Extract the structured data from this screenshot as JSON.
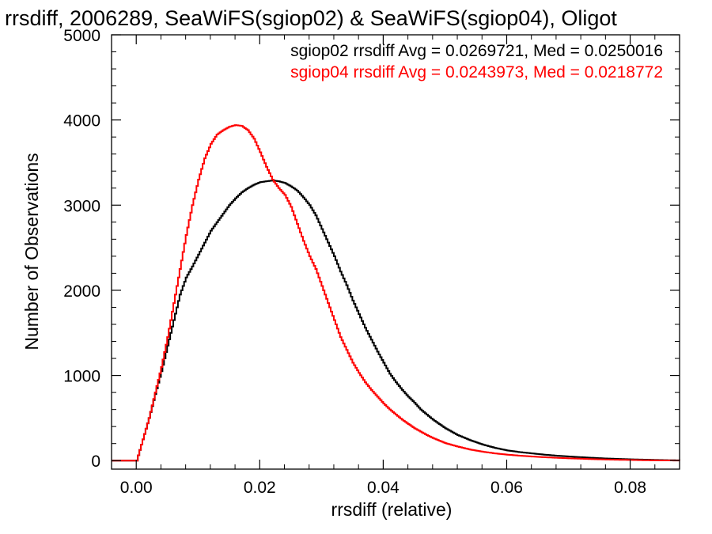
{
  "chart_data": {
    "type": "histogram",
    "title": "rrsdiff, 2006289, SeaWiFS(sgiop02) & SeaWiFS(sgiop04), Oligot",
    "xlabel": "rrsdiff (relative)",
    "ylabel": "Number of Observations",
    "xlim": [
      -0.004,
      0.088
    ],
    "ylim": [
      -100,
      5000
    ],
    "x_ticks": [
      0.0,
      0.02,
      0.04,
      0.06,
      0.08
    ],
    "x_tick_labels": [
      "0.00",
      "0.02",
      "0.04",
      "0.06",
      "0.08"
    ],
    "y_ticks": [
      0,
      1000,
      2000,
      3000,
      4000,
      5000
    ],
    "y_tick_labels": [
      "0",
      "1000",
      "2000",
      "3000",
      "4000",
      "5000"
    ],
    "grid": false,
    "legend_position": "top-right",
    "series": [
      {
        "name": "sgiop02",
        "color": "#000000",
        "stats_label": "sgiop02 rrsdiff Avg = 0.0269721, Med = 0.0250016",
        "x": [
          -0.004,
          0.0,
          0.001,
          0.002,
          0.003,
          0.004,
          0.005,
          0.006,
          0.007,
          0.008,
          0.009,
          0.01,
          0.011,
          0.012,
          0.013,
          0.014,
          0.015,
          0.016,
          0.017,
          0.018,
          0.019,
          0.02,
          0.021,
          0.022,
          0.023,
          0.024,
          0.025,
          0.026,
          0.027,
          0.028,
          0.029,
          0.03,
          0.031,
          0.032,
          0.033,
          0.034,
          0.035,
          0.036,
          0.037,
          0.038,
          0.039,
          0.04,
          0.041,
          0.042,
          0.043,
          0.044,
          0.045,
          0.046,
          0.047,
          0.048,
          0.049,
          0.05,
          0.052,
          0.054,
          0.056,
          0.058,
          0.06,
          0.062,
          0.064,
          0.066,
          0.068,
          0.07,
          0.072,
          0.074,
          0.076,
          0.078,
          0.08,
          0.082,
          0.084,
          0.086,
          0.088
        ],
        "y": [
          0,
          0,
          250,
          500,
          780,
          1050,
          1350,
          1650,
          1950,
          2150,
          2280,
          2420,
          2560,
          2700,
          2800,
          2900,
          3000,
          3080,
          3150,
          3200,
          3240,
          3270,
          3280,
          3290,
          3280,
          3260,
          3220,
          3170,
          3090,
          3000,
          2880,
          2720,
          2560,
          2400,
          2220,
          2060,
          1880,
          1720,
          1560,
          1420,
          1280,
          1150,
          1020,
          920,
          830,
          750,
          680,
          600,
          540,
          480,
          430,
          380,
          300,
          240,
          190,
          150,
          120,
          100,
          85,
          70,
          58,
          48,
          40,
          32,
          25,
          20,
          15,
          12,
          8,
          5,
          3
        ]
      },
      {
        "name": "sgiop04",
        "color": "#ff0000",
        "stats_label": "sgiop04 rrsdiff Avg = 0.0243973, Med = 0.0218772",
        "x": [
          -0.004,
          0.0,
          0.001,
          0.002,
          0.003,
          0.004,
          0.005,
          0.006,
          0.007,
          0.008,
          0.009,
          0.01,
          0.011,
          0.012,
          0.013,
          0.014,
          0.015,
          0.016,
          0.017,
          0.018,
          0.019,
          0.02,
          0.021,
          0.022,
          0.023,
          0.024,
          0.025,
          0.026,
          0.027,
          0.028,
          0.029,
          0.03,
          0.031,
          0.032,
          0.033,
          0.034,
          0.035,
          0.036,
          0.037,
          0.038,
          0.039,
          0.04,
          0.041,
          0.042,
          0.043,
          0.044,
          0.045,
          0.046,
          0.047,
          0.048,
          0.049,
          0.05,
          0.052,
          0.054,
          0.056,
          0.058,
          0.06,
          0.062,
          0.064,
          0.066,
          0.068,
          0.07,
          0.072,
          0.074,
          0.076,
          0.078,
          0.08,
          0.082,
          0.084,
          0.086,
          0.088
        ],
        "y": [
          0,
          0,
          250,
          500,
          800,
          1100,
          1450,
          1850,
          2250,
          2650,
          3000,
          3300,
          3550,
          3720,
          3830,
          3880,
          3920,
          3940,
          3930,
          3880,
          3780,
          3620,
          3450,
          3300,
          3200,
          3120,
          2980,
          2780,
          2580,
          2400,
          2250,
          2050,
          1850,
          1650,
          1450,
          1300,
          1150,
          1030,
          920,
          830,
          750,
          670,
          600,
          540,
          480,
          430,
          380,
          340,
          300,
          265,
          235,
          205,
          165,
          130,
          105,
          85,
          70,
          58,
          48,
          40,
          33,
          27,
          22,
          17,
          13,
          10,
          8,
          5,
          3,
          2,
          1
        ]
      }
    ]
  }
}
